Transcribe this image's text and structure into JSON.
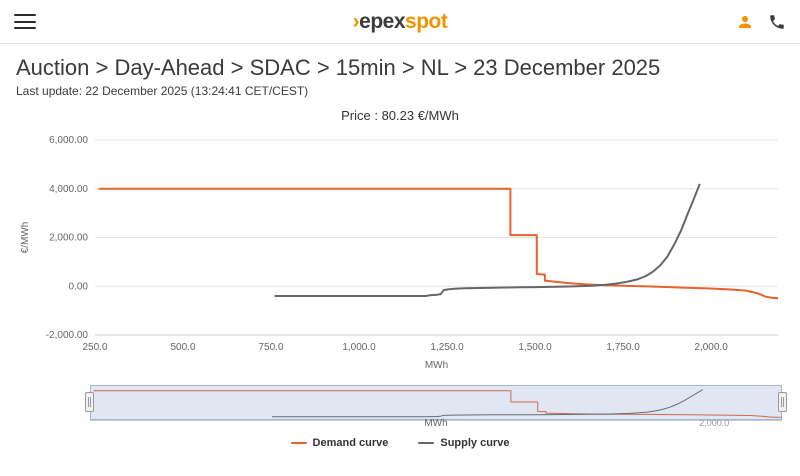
{
  "header": {
    "logo": {
      "mark": "›",
      "dark": "epex",
      "accent": "spot"
    },
    "icons": {
      "user": "user-icon",
      "phone": "phone-icon"
    },
    "accent_color": "#f39200"
  },
  "page": {
    "breadcrumb": "Auction > Day-Ahead > SDAC > 15min > NL > 23 December 2025",
    "last_update": "Last update: 22 December 2025 (13:24:41 CET/CEST)",
    "price_label": "Price : 80.23 €/MWh"
  },
  "chart_data": {
    "type": "line",
    "title": "",
    "xlabel": "MWh",
    "ylabel": "€/MWh",
    "xlim": [
      250,
      2190
    ],
    "ylim": [
      -2000,
      6000
    ],
    "grid": "horizontal",
    "legend_position": "bottom",
    "yticks": [
      {
        "v": 6000,
        "label": "6,000.00"
      },
      {
        "v": 4000,
        "label": "4,000.00"
      },
      {
        "v": 2000,
        "label": "2,000.00"
      },
      {
        "v": 0,
        "label": "0.00"
      },
      {
        "v": -2000,
        "label": "-2,000.00"
      }
    ],
    "xticks": [
      {
        "v": 250,
        "label": "250.0"
      },
      {
        "v": 500,
        "label": "500.0"
      },
      {
        "v": 750,
        "label": "750.0"
      },
      {
        "v": 1000,
        "label": "1,000.0"
      },
      {
        "v": 1250,
        "label": "1,250.0"
      },
      {
        "v": 1500,
        "label": "1,500.0"
      },
      {
        "v": 1750,
        "label": "1,750.0"
      },
      {
        "v": 2000,
        "label": "2,000.0"
      }
    ],
    "series": [
      {
        "name": "Demand curve",
        "color": "#e8622d",
        "points": [
          [
            260,
            4000
          ],
          [
            1430,
            4000
          ],
          [
            1430,
            2100
          ],
          [
            1505,
            2100
          ],
          [
            1505,
            500
          ],
          [
            1528,
            480
          ],
          [
            1528,
            230
          ],
          [
            1560,
            180
          ],
          [
            1600,
            120
          ],
          [
            1650,
            70
          ],
          [
            1700,
            40
          ],
          [
            1750,
            20
          ],
          [
            1810,
            0
          ],
          [
            1870,
            -30
          ],
          [
            1930,
            -60
          ],
          [
            1990,
            -90
          ],
          [
            2050,
            -130
          ],
          [
            2100,
            -180
          ],
          [
            2135,
            -300
          ],
          [
            2155,
            -430
          ],
          [
            2175,
            -480
          ],
          [
            2190,
            -490
          ]
        ]
      },
      {
        "name": "Supply curve",
        "color": "#666666",
        "points": [
          [
            760,
            -400
          ],
          [
            1190,
            -400
          ],
          [
            1200,
            -370
          ],
          [
            1212,
            -360
          ],
          [
            1222,
            -345
          ],
          [
            1232,
            -320
          ],
          [
            1240,
            -160
          ],
          [
            1252,
            -130
          ],
          [
            1270,
            -105
          ],
          [
            1300,
            -85
          ],
          [
            1340,
            -70
          ],
          [
            1380,
            -60
          ],
          [
            1420,
            -50
          ],
          [
            1460,
            -42
          ],
          [
            1500,
            -34
          ],
          [
            1540,
            -25
          ],
          [
            1580,
            -14
          ],
          [
            1620,
            0
          ],
          [
            1660,
            22
          ],
          [
            1700,
            60
          ],
          [
            1730,
            110
          ],
          [
            1760,
            180
          ],
          [
            1790,
            280
          ],
          [
            1815,
            420
          ],
          [
            1835,
            600
          ],
          [
            1855,
            850
          ],
          [
            1875,
            1200
          ],
          [
            1895,
            1700
          ],
          [
            1915,
            2300
          ],
          [
            1933,
            2950
          ],
          [
            1950,
            3550
          ],
          [
            1968,
            4200
          ]
        ]
      }
    ]
  },
  "navigator": {
    "xlabel": "MWh",
    "tick": {
      "v": 2000,
      "label": "2,000.0"
    },
    "ylim": [
      -600,
      4300
    ],
    "mask_color": "rgba(102,133,194,0.2)",
    "mask_border": "rgba(102,133,194,0.55)"
  },
  "legend": {
    "items": [
      {
        "label": "Demand curve",
        "color": "#e8622d"
      },
      {
        "label": "Supply curve",
        "color": "#666666"
      }
    ]
  }
}
